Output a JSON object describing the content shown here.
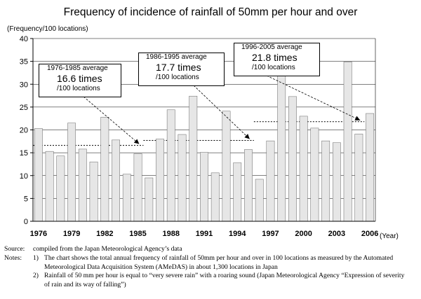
{
  "title": "Frequency of incidence of rainfall of 50mm per hour and over",
  "chart_data": {
    "type": "bar",
    "ylabel": "(Frequency/100 locations)",
    "xlabel": "(Year)",
    "ylim": [
      0,
      40
    ],
    "yticks": [
      0,
      5,
      10,
      15,
      20,
      25,
      30,
      35,
      40
    ],
    "grid": true,
    "x": [
      1976,
      1977,
      1978,
      1979,
      1980,
      1981,
      1982,
      1983,
      1984,
      1985,
      1986,
      1987,
      1988,
      1989,
      1990,
      1991,
      1992,
      1993,
      1994,
      1995,
      1996,
      1997,
      1998,
      1999,
      2000,
      2001,
      2002,
      2003,
      2004,
      2005,
      2006
    ],
    "xtick_labels": [
      "1976",
      "1979",
      "1982",
      "1985",
      "1988",
      "1991",
      "1994",
      "1997",
      "2000",
      "2003",
      "2006"
    ],
    "values": [
      20.3,
      15.3,
      14.3,
      21.5,
      15.8,
      13.0,
      22.8,
      17.8,
      10.3,
      14.8,
      9.5,
      18.0,
      24.4,
      19.0,
      27.4,
      15.1,
      10.6,
      24.1,
      12.8,
      15.7,
      9.2,
      17.6,
      31.8,
      27.3,
      23.0,
      20.4,
      17.6,
      17.2,
      34.9,
      19.1,
      23.6
    ],
    "bar_color": "#e6e6e6",
    "averages": [
      {
        "period": "1976-1985 average",
        "value_text": "16.6 times",
        "unit": "/100 locations",
        "value": 16.6,
        "from": 1976,
        "to": 1985
      },
      {
        "period": "1986-1995 average",
        "value_text": "17.7 times",
        "unit": "/100 locations",
        "value": 17.7,
        "from": 1986,
        "to": 1995
      },
      {
        "period": "1996-2005 average",
        "value_text": "21.8 times",
        "unit": "/100 locations",
        "value": 21.8,
        "from": 1996,
        "to": 2005
      }
    ]
  },
  "source": {
    "label": "Source:",
    "text": "compiled from the Japan Meteorological Agency’s data"
  },
  "notes": {
    "label": "Notes:",
    "items": [
      {
        "num": "1)",
        "lines": [
          "The chart shows the total annual frequency of rainfall of 50mm per hour and over in 100 locations as measured by the Automated",
          "Meteorological Data Acquisition System (AMeDAS) in about 1,300 locations in Japan"
        ]
      },
      {
        "num": "2)",
        "lines": [
          "Rainfall of 50 mm per hour is equal to “very severe rain” with a roaring sound (Japan Meteorological Agency “Expression of severity",
          "of rain and its way of falling”)"
        ]
      }
    ]
  }
}
